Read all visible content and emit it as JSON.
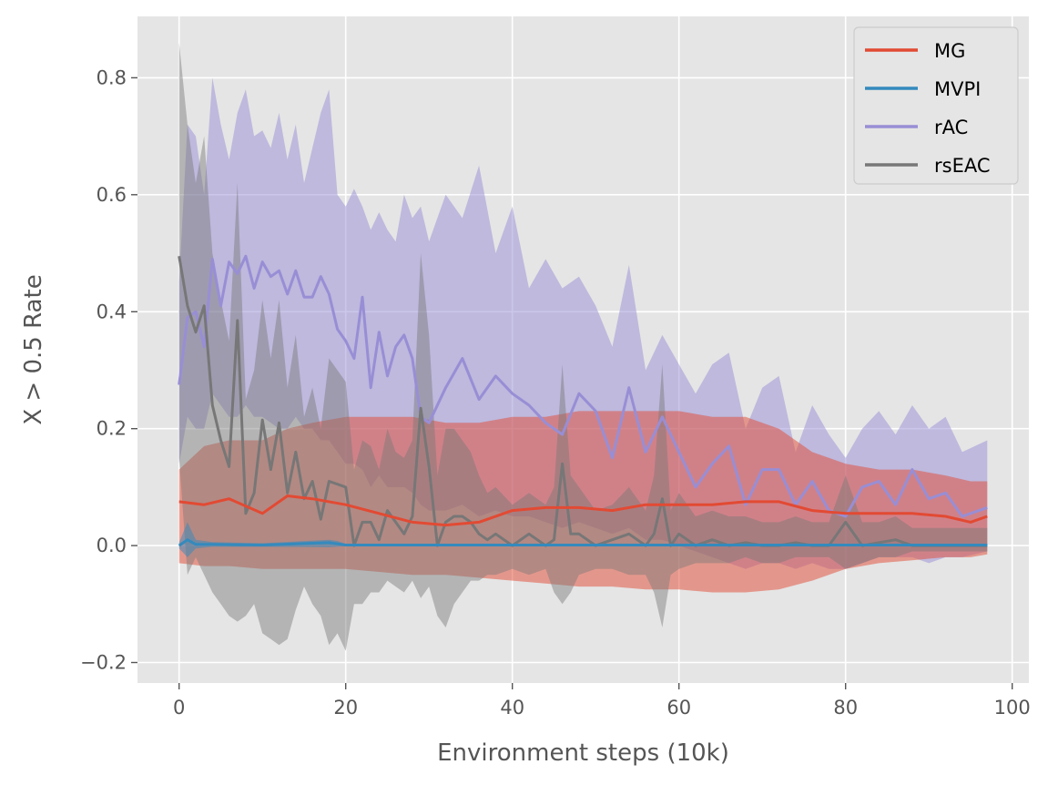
{
  "chart_data": {
    "type": "line",
    "title": "",
    "xlabel": "Environment steps (10k)",
    "ylabel": "X > 0.5 Rate",
    "xlim": [
      -5,
      102
    ],
    "ylim": [
      -0.235,
      0.905
    ],
    "xticks": [
      0,
      20,
      40,
      60,
      80,
      100
    ],
    "yticks": [
      -0.2,
      0.0,
      0.2,
      0.4,
      0.6,
      0.8
    ],
    "xtick_labels": [
      "0",
      "20",
      "40",
      "60",
      "80",
      "100"
    ],
    "ytick_labels": [
      "−0.2",
      "0.0",
      "0.2",
      "0.4",
      "0.6",
      "0.8"
    ],
    "grid": true,
    "legend_position": "top-right",
    "series": [
      {
        "name": "MG",
        "color": "#E24A33",
        "x": [
          0,
          3,
          6,
          10,
          13,
          16,
          20,
          24,
          28,
          32,
          36,
          40,
          44,
          48,
          52,
          56,
          60,
          64,
          68,
          72,
          76,
          80,
          84,
          88,
          92,
          95,
          97
        ],
        "values": [
          0.075,
          0.07,
          0.08,
          0.055,
          0.085,
          0.08,
          0.07,
          0.055,
          0.04,
          0.035,
          0.04,
          0.06,
          0.065,
          0.065,
          0.06,
          0.07,
          0.07,
          0.07,
          0.075,
          0.075,
          0.06,
          0.055,
          0.055,
          0.055,
          0.05,
          0.04,
          0.05
        ],
        "lower": [
          -0.03,
          -0.035,
          -0.035,
          -0.04,
          -0.04,
          -0.04,
          -0.04,
          -0.045,
          -0.05,
          -0.05,
          -0.055,
          -0.06,
          -0.065,
          -0.07,
          -0.07,
          -0.075,
          -0.075,
          -0.08,
          -0.08,
          -0.075,
          -0.06,
          -0.04,
          -0.03,
          -0.025,
          -0.02,
          -0.02,
          -0.015
        ],
        "upper": [
          0.13,
          0.17,
          0.18,
          0.18,
          0.2,
          0.21,
          0.22,
          0.22,
          0.22,
          0.21,
          0.21,
          0.22,
          0.22,
          0.23,
          0.23,
          0.23,
          0.23,
          0.22,
          0.22,
          0.2,
          0.16,
          0.14,
          0.13,
          0.13,
          0.12,
          0.11,
          0.11
        ]
      },
      {
        "name": "MVPI",
        "color": "#348ABD",
        "x": [
          0,
          1,
          2,
          4,
          10,
          18,
          19,
          20,
          30,
          40,
          50,
          60,
          70,
          80,
          90,
          97
        ],
        "values": [
          0.0,
          0.01,
          0.002,
          0.002,
          0.001,
          0.005,
          0.003,
          0.001,
          0.001,
          0.001,
          0.001,
          0.001,
          0.001,
          0.001,
          0.001,
          0.001
        ],
        "lower": [
          -0.005,
          -0.02,
          -0.005,
          -0.002,
          -0.002,
          -0.003,
          -0.002,
          -0.001,
          -0.001,
          -0.001,
          -0.001,
          -0.001,
          -0.001,
          -0.001,
          -0.001,
          -0.001
        ],
        "upper": [
          0.005,
          0.04,
          0.01,
          0.006,
          0.004,
          0.01,
          0.008,
          0.003,
          0.003,
          0.003,
          0.003,
          0.003,
          0.003,
          0.003,
          0.003,
          0.003
        ]
      },
      {
        "name": "rAC",
        "color": "#988ED5",
        "x": [
          0,
          1,
          2,
          3,
          4,
          5,
          6,
          7,
          8,
          9,
          10,
          11,
          12,
          13,
          14,
          15,
          16,
          17,
          18,
          19,
          20,
          21,
          22,
          23,
          24,
          25,
          26,
          27,
          28,
          29,
          30,
          32,
          34,
          36,
          38,
          40,
          42,
          44,
          46,
          48,
          50,
          52,
          54,
          56,
          58,
          60,
          62,
          64,
          66,
          68,
          70,
          72,
          74,
          76,
          78,
          80,
          82,
          84,
          86,
          88,
          90,
          92,
          94,
          97
        ],
        "values": [
          0.275,
          0.39,
          0.4,
          0.34,
          0.49,
          0.41,
          0.485,
          0.465,
          0.495,
          0.44,
          0.485,
          0.46,
          0.47,
          0.43,
          0.47,
          0.425,
          0.425,
          0.46,
          0.43,
          0.37,
          0.35,
          0.32,
          0.425,
          0.27,
          0.365,
          0.29,
          0.34,
          0.36,
          0.32,
          0.22,
          0.21,
          0.27,
          0.32,
          0.25,
          0.29,
          0.26,
          0.24,
          0.21,
          0.19,
          0.26,
          0.23,
          0.15,
          0.27,
          0.16,
          0.22,
          0.16,
          0.1,
          0.14,
          0.17,
          0.07,
          0.13,
          0.13,
          0.07,
          0.11,
          0.06,
          0.05,
          0.1,
          0.11,
          0.07,
          0.13,
          0.08,
          0.09,
          0.05,
          0.065
        ],
        "lower": [
          0.14,
          0.22,
          0.2,
          0.2,
          0.26,
          0.24,
          0.22,
          0.22,
          0.24,
          0.22,
          0.22,
          0.21,
          0.2,
          0.2,
          0.22,
          0.2,
          0.2,
          0.18,
          0.18,
          0.16,
          0.14,
          0.14,
          0.13,
          0.1,
          0.12,
          0.1,
          0.1,
          0.1,
          0.09,
          0.07,
          0.06,
          0.06,
          0.07,
          0.05,
          0.06,
          0.05,
          0.05,
          0.04,
          0.03,
          0.04,
          0.03,
          0.02,
          0.03,
          0.01,
          0.01,
          0.0,
          -0.01,
          -0.02,
          -0.03,
          -0.04,
          -0.03,
          -0.03,
          -0.04,
          -0.03,
          -0.04,
          -0.04,
          -0.03,
          -0.02,
          -0.02,
          -0.02,
          -0.03,
          -0.02,
          -0.02,
          -0.01
        ],
        "upper": [
          0.45,
          0.72,
          0.7,
          0.6,
          0.8,
          0.72,
          0.66,
          0.74,
          0.78,
          0.7,
          0.71,
          0.68,
          0.74,
          0.66,
          0.72,
          0.62,
          0.68,
          0.74,
          0.78,
          0.6,
          0.58,
          0.61,
          0.58,
          0.54,
          0.57,
          0.54,
          0.52,
          0.6,
          0.56,
          0.58,
          0.52,
          0.6,
          0.56,
          0.65,
          0.5,
          0.58,
          0.44,
          0.49,
          0.44,
          0.46,
          0.41,
          0.34,
          0.48,
          0.3,
          0.36,
          0.31,
          0.26,
          0.31,
          0.33,
          0.2,
          0.27,
          0.29,
          0.16,
          0.24,
          0.19,
          0.15,
          0.2,
          0.23,
          0.19,
          0.24,
          0.2,
          0.22,
          0.16,
          0.18
        ]
      },
      {
        "name": "rsEAC",
        "color": "#777777",
        "x": [
          0,
          1,
          2,
          3,
          4,
          5,
          6,
          7,
          8,
          9,
          10,
          11,
          12,
          13,
          14,
          15,
          16,
          17,
          18,
          19,
          20,
          21,
          22,
          23,
          24,
          25,
          26,
          27,
          28,
          29,
          30,
          31,
          32,
          33,
          34,
          35,
          36,
          37,
          38,
          40,
          42,
          44,
          45,
          46,
          47,
          48,
          50,
          52,
          54,
          56,
          57,
          58,
          59,
          60,
          62,
          64,
          66,
          68,
          70,
          72,
          74,
          76,
          78,
          80,
          82,
          84,
          86,
          88,
          90,
          92,
          94,
          97
        ],
        "values": [
          0.495,
          0.41,
          0.365,
          0.41,
          0.24,
          0.18,
          0.135,
          0.385,
          0.055,
          0.09,
          0.215,
          0.13,
          0.21,
          0.09,
          0.16,
          0.08,
          0.11,
          0.045,
          0.11,
          0.105,
          0.1,
          0.0,
          0.04,
          0.04,
          0.01,
          0.06,
          0.04,
          0.02,
          0.05,
          0.235,
          0.135,
          0.0,
          0.04,
          0.05,
          0.05,
          0.04,
          0.02,
          0.01,
          0.02,
          0.0,
          0.02,
          0.0,
          0.01,
          0.14,
          0.02,
          0.02,
          0.0,
          0.01,
          0.02,
          0.0,
          0.02,
          0.08,
          0.0,
          0.02,
          0.0,
          0.01,
          0.0,
          0.005,
          0.0,
          0.0,
          0.005,
          0.0,
          0.0,
          0.04,
          0.0,
          0.005,
          0.01,
          0.0,
          0.0,
          0.0,
          0.0,
          0.0
        ],
        "lower": [
          0.15,
          -0.05,
          -0.02,
          -0.05,
          -0.08,
          -0.1,
          -0.12,
          -0.13,
          -0.12,
          -0.1,
          -0.15,
          -0.16,
          -0.17,
          -0.16,
          -0.11,
          -0.07,
          -0.1,
          -0.12,
          -0.17,
          -0.15,
          -0.18,
          -0.1,
          -0.1,
          -0.08,
          -0.08,
          -0.06,
          -0.07,
          -0.08,
          -0.06,
          -0.09,
          -0.07,
          -0.12,
          -0.14,
          -0.1,
          -0.08,
          -0.06,
          -0.06,
          -0.05,
          -0.05,
          -0.04,
          -0.05,
          -0.04,
          -0.08,
          -0.1,
          -0.08,
          -0.05,
          -0.04,
          -0.04,
          -0.05,
          -0.05,
          -0.08,
          -0.14,
          -0.05,
          -0.04,
          -0.03,
          -0.03,
          -0.03,
          -0.02,
          -0.03,
          -0.03,
          -0.02,
          -0.02,
          -0.02,
          -0.04,
          -0.03,
          -0.02,
          -0.02,
          -0.01,
          -0.01,
          -0.01,
          -0.01,
          -0.01
        ],
        "upper": [
          0.86,
          0.72,
          0.62,
          0.7,
          0.5,
          0.42,
          0.35,
          0.62,
          0.25,
          0.3,
          0.42,
          0.32,
          0.42,
          0.27,
          0.36,
          0.22,
          0.27,
          0.2,
          0.32,
          0.3,
          0.28,
          0.13,
          0.18,
          0.17,
          0.13,
          0.2,
          0.16,
          0.15,
          0.18,
          0.5,
          0.36,
          0.12,
          0.2,
          0.2,
          0.18,
          0.16,
          0.12,
          0.09,
          0.1,
          0.07,
          0.09,
          0.07,
          0.1,
          0.31,
          0.12,
          0.1,
          0.06,
          0.07,
          0.1,
          0.06,
          0.12,
          0.31,
          0.06,
          0.09,
          0.05,
          0.06,
          0.05,
          0.05,
          0.04,
          0.04,
          0.05,
          0.04,
          0.04,
          0.12,
          0.04,
          0.04,
          0.05,
          0.03,
          0.03,
          0.03,
          0.03,
          0.03
        ]
      }
    ]
  }
}
